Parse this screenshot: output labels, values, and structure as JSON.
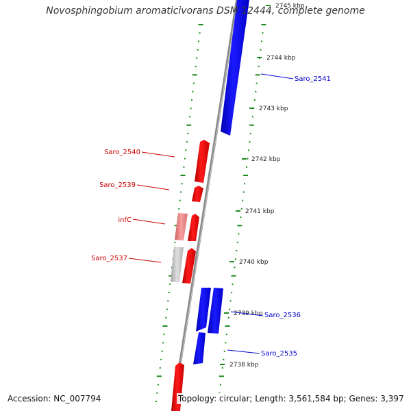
{
  "title": "Novosphingobium aromaticivorans DSM 12444, complete genome",
  "footer": {
    "accession": "Accession: NC_007794",
    "stats": "Topology: circular; Length: 3,561,584 bp; Genes: 3,397"
  },
  "colors": {
    "forward_gene": "#e60000",
    "reverse_gene": "#0000ee",
    "rna_gene": "#f08080",
    "pseudo_gene": "#c0c0c0",
    "backbone": "#909090",
    "dots": "#1a8a1a",
    "label_forward": "#cc0000",
    "label_reverse": "#0000cc"
  },
  "ticks": [
    "2745 kbp",
    "2744 kbp",
    "2743 kbp",
    "2742 kbp",
    "2741 kbp",
    "2740 kbp",
    "2739 kbp",
    "2738 kbp"
  ],
  "genes": [
    {
      "name": "Saro_2541",
      "strand": "reverse"
    },
    {
      "name": "Saro_2540",
      "strand": "forward"
    },
    {
      "name": "Saro_2539",
      "strand": "forward"
    },
    {
      "name": "infC",
      "strand": "forward"
    },
    {
      "name": "Saro_2537",
      "strand": "forward"
    },
    {
      "name": "Saro_2536",
      "strand": "reverse"
    },
    {
      "name": "Saro_2535",
      "strand": "reverse"
    }
  ]
}
